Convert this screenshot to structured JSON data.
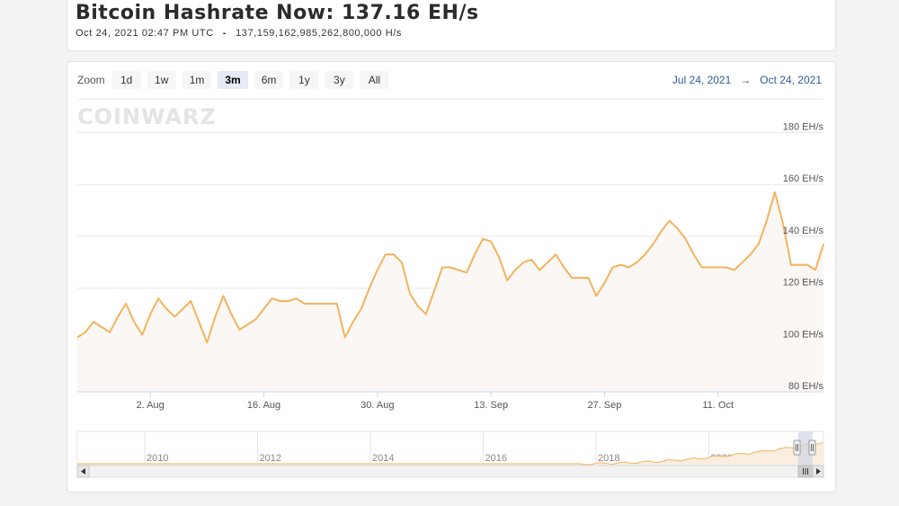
{
  "header": {
    "title": "Bitcoin Hashrate Now: 137.16 EH/s",
    "timestamp": "Oct 24, 2021 02:47 PM UTC",
    "separator": "-",
    "raw_hashrate": "137,159,162,985,262,800,000 H/s"
  },
  "zoom": {
    "label": "Zoom",
    "buttons": [
      "1d",
      "1w",
      "1m",
      "3m",
      "6m",
      "1y",
      "3y",
      "All"
    ],
    "active": "3m"
  },
  "range": {
    "from": "Jul 24, 2021",
    "arrow": "→",
    "to": "Oct 24, 2021"
  },
  "watermark": "COINWARZ",
  "colors": {
    "line": "#f3b35e",
    "fill": "#fbf7f4",
    "grid": "#e8e8e8",
    "nav_fill": "#fbeee0"
  },
  "chart_data": {
    "type": "area",
    "title": "",
    "xlabel": "",
    "ylabel": "",
    "y_unit": "EH/s",
    "ylim": [
      80,
      193
    ],
    "y_ticks": [
      80,
      100,
      120,
      140,
      160,
      180
    ],
    "y_tick_labels": [
      "80 EH/s",
      "100 EH/s",
      "120 EH/s",
      "140 EH/s",
      "160 EH/s",
      "180 EH/s"
    ],
    "xlim": [
      "2021-07-24",
      "2021-10-24"
    ],
    "x_ticks": [
      "2021-08-02",
      "2021-08-16",
      "2021-08-30",
      "2021-09-13",
      "2021-09-27",
      "2021-10-11"
    ],
    "x_tick_labels": [
      "2. Aug",
      "16. Aug",
      "30. Aug",
      "13. Sep",
      "27. Sep",
      "11. Oct"
    ],
    "grid": true,
    "series": [
      {
        "points": [
          [
            "2021-07-24",
            101
          ],
          [
            "2021-07-25",
            103
          ],
          [
            "2021-07-26",
            107
          ],
          [
            "2021-07-27",
            105
          ],
          [
            "2021-07-28",
            103
          ],
          [
            "2021-07-29",
            109
          ],
          [
            "2021-07-30",
            114
          ],
          [
            "2021-07-31",
            107
          ],
          [
            "2021-08-01",
            102
          ],
          [
            "2021-08-02",
            110
          ],
          [
            "2021-08-03",
            116
          ],
          [
            "2021-08-04",
            112
          ],
          [
            "2021-08-05",
            109
          ],
          [
            "2021-08-06",
            112
          ],
          [
            "2021-08-07",
            115
          ],
          [
            "2021-08-08",
            107
          ],
          [
            "2021-08-09",
            99
          ],
          [
            "2021-08-10",
            109
          ],
          [
            "2021-08-11",
            117
          ],
          [
            "2021-08-12",
            110
          ],
          [
            "2021-08-13",
            104
          ],
          [
            "2021-08-14",
            106
          ],
          [
            "2021-08-15",
            108
          ],
          [
            "2021-08-16",
            112
          ],
          [
            "2021-08-17",
            116
          ],
          [
            "2021-08-18",
            115
          ],
          [
            "2021-08-19",
            115
          ],
          [
            "2021-08-20",
            116
          ],
          [
            "2021-08-21",
            114
          ],
          [
            "2021-08-22",
            114
          ],
          [
            "2021-08-23",
            114
          ],
          [
            "2021-08-24",
            114
          ],
          [
            "2021-08-25",
            114
          ],
          [
            "2021-08-26",
            101
          ],
          [
            "2021-08-27",
            107
          ],
          [
            "2021-08-28",
            112
          ],
          [
            "2021-08-29",
            120
          ],
          [
            "2021-08-30",
            127
          ],
          [
            "2021-08-31",
            133
          ],
          [
            "2021-09-01",
            133
          ],
          [
            "2021-09-02",
            130
          ],
          [
            "2021-09-03",
            118
          ],
          [
            "2021-09-04",
            113
          ],
          [
            "2021-09-05",
            110
          ],
          [
            "2021-09-06",
            119
          ],
          [
            "2021-09-07",
            128
          ],
          [
            "2021-09-08",
            128
          ],
          [
            "2021-09-09",
            127
          ],
          [
            "2021-09-10",
            126
          ],
          [
            "2021-09-11",
            133
          ],
          [
            "2021-09-12",
            139
          ],
          [
            "2021-09-13",
            138
          ],
          [
            "2021-09-14",
            132
          ],
          [
            "2021-09-15",
            123
          ],
          [
            "2021-09-16",
            127
          ],
          [
            "2021-09-17",
            130
          ],
          [
            "2021-09-18",
            131
          ],
          [
            "2021-09-19",
            127
          ],
          [
            "2021-09-20",
            130
          ],
          [
            "2021-09-21",
            133
          ],
          [
            "2021-09-22",
            128
          ],
          [
            "2021-09-23",
            124
          ],
          [
            "2021-09-24",
            124
          ],
          [
            "2021-09-25",
            124
          ],
          [
            "2021-09-26",
            117
          ],
          [
            "2021-09-27",
            122
          ],
          [
            "2021-09-28",
            128
          ],
          [
            "2021-09-29",
            129
          ],
          [
            "2021-09-30",
            128
          ],
          [
            "2021-10-01",
            130
          ],
          [
            "2021-10-02",
            133
          ],
          [
            "2021-10-03",
            137
          ],
          [
            "2021-10-04",
            142
          ],
          [
            "2021-10-05",
            146
          ],
          [
            "2021-10-06",
            143
          ],
          [
            "2021-10-07",
            139
          ],
          [
            "2021-10-08",
            133
          ],
          [
            "2021-10-09",
            128
          ],
          [
            "2021-10-10",
            128
          ],
          [
            "2021-10-11",
            128
          ],
          [
            "2021-10-12",
            128
          ],
          [
            "2021-10-13",
            127
          ],
          [
            "2021-10-14",
            130
          ],
          [
            "2021-10-15",
            133
          ],
          [
            "2021-10-16",
            137
          ],
          [
            "2021-10-17",
            146
          ],
          [
            "2021-10-18",
            157
          ],
          [
            "2021-10-19",
            145
          ],
          [
            "2021-10-20",
            129
          ],
          [
            "2021-10-21",
            129
          ],
          [
            "2021-10-22",
            129
          ],
          [
            "2021-10-23",
            127
          ],
          [
            "2021-10-24",
            137
          ]
        ]
      }
    ]
  },
  "navigator": {
    "year_labels": [
      "2010",
      "2012",
      "2014",
      "2016",
      "2018",
      "2020"
    ]
  }
}
